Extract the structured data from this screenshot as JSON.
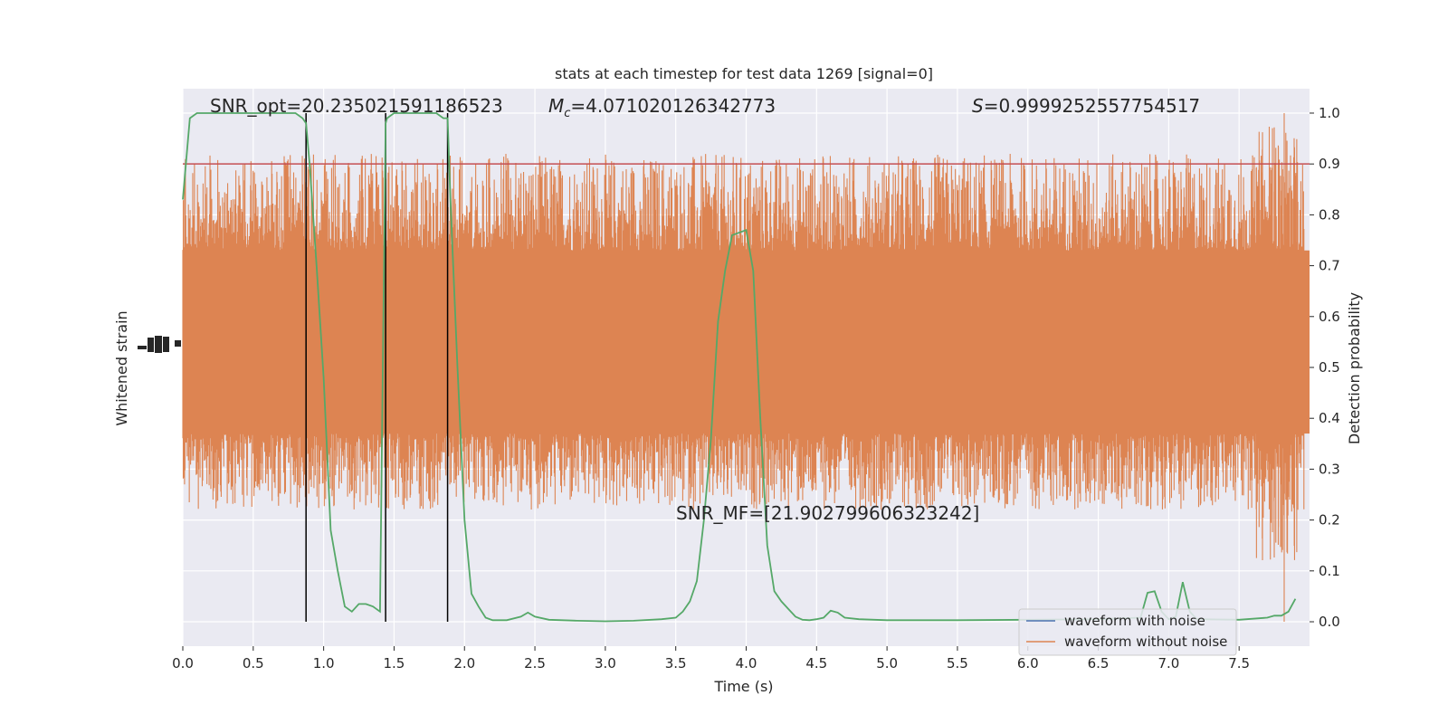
{
  "chart_data": {
    "type": "line",
    "title": "stats at each timestep for test data 1269 [signal=0]",
    "xlabel": "Time (s)",
    "ylabel_left": "Whitened strain",
    "ylabel_right": "Detection probability",
    "xlim": [
      0.0,
      8.0
    ],
    "ylim_right": [
      -0.048,
      1.048
    ],
    "x_ticks": [
      "0.0",
      "0.5",
      "1.0",
      "1.5",
      "2.0",
      "2.5",
      "3.0",
      "3.5",
      "4.0",
      "4.5",
      "5.0",
      "5.5",
      "6.0",
      "6.5",
      "7.0",
      "7.5"
    ],
    "y_ticks_right": [
      "0.0",
      "0.1",
      "0.2",
      "0.3",
      "0.4",
      "0.5",
      "0.6",
      "0.7",
      "0.8",
      "0.9",
      "1.0"
    ],
    "grid": true,
    "legend_position": "lower-right",
    "legend": [
      {
        "label": "waveform with noise",
        "color": "#4c72b0"
      },
      {
        "label": "waveform without noise",
        "color": "#dd8452"
      }
    ],
    "annotations": {
      "snr_opt": "SNR_opt=20.235021591186523",
      "mc_symbol": "M",
      "mc_subscript": "c",
      "mc_value": "=4.071020126342773",
      "s_symbol": "S",
      "s_value": "=0.9999252557754517",
      "snr_mf": "SNR_MF=[21.902799606323242]"
    },
    "threshold": {
      "value": 0.9,
      "color": "#c44e52"
    },
    "event_lines_x": [
      0.875,
      1.44,
      1.88
    ],
    "event_line_color": "#000000",
    "strain": {
      "color": "#dd8452",
      "envelope_detection_prob": [
        0.22,
        0.92
      ],
      "core_detection_prob": [
        0.37,
        0.73
      ],
      "center_detection_prob": 0.55,
      "peak": {
        "x": 7.82,
        "value": 1.0
      },
      "min": {
        "x": 7.82,
        "value": 0.0
      }
    },
    "detection_probability": {
      "color": "#55a868",
      "x": [
        0.0,
        0.05,
        0.1,
        0.15,
        0.2,
        0.3,
        0.4,
        0.5,
        0.6,
        0.7,
        0.8,
        0.85,
        0.875,
        0.9,
        0.95,
        1.0,
        1.05,
        1.1,
        1.15,
        1.2,
        1.25,
        1.3,
        1.35,
        1.4,
        1.44,
        1.45,
        1.5,
        1.55,
        1.6,
        1.7,
        1.8,
        1.85,
        1.88,
        1.9,
        1.95,
        2.0,
        2.05,
        2.1,
        2.15,
        2.2,
        2.3,
        2.4,
        2.45,
        2.5,
        2.6,
        2.8,
        3.0,
        3.2,
        3.4,
        3.5,
        3.55,
        3.6,
        3.65,
        3.7,
        3.75,
        3.8,
        3.85,
        3.9,
        4.0,
        4.05,
        4.1,
        4.15,
        4.2,
        4.25,
        4.3,
        4.35,
        4.4,
        4.45,
        4.5,
        4.55,
        4.6,
        4.65,
        4.7,
        4.8,
        5.0,
        5.5,
        6.0,
        6.5,
        6.8,
        6.85,
        6.9,
        6.95,
        7.0,
        7.05,
        7.1,
        7.15,
        7.2,
        7.5,
        7.7,
        7.75,
        7.8,
        7.85,
        7.9
      ],
      "values": [
        0.83,
        0.99,
        1.0,
        1.0,
        1.0,
        1.0,
        1.0,
        1.0,
        1.0,
        1.0,
        1.0,
        0.99,
        0.98,
        0.9,
        0.7,
        0.48,
        0.18,
        0.1,
        0.03,
        0.02,
        0.035,
        0.035,
        0.03,
        0.02,
        0.98,
        0.99,
        1.0,
        1.0,
        1.0,
        1.0,
        1.0,
        0.99,
        0.99,
        0.83,
        0.5,
        0.2,
        0.055,
        0.03,
        0.008,
        0.003,
        0.003,
        0.01,
        0.018,
        0.01,
        0.004,
        0.002,
        0.001,
        0.002,
        0.005,
        0.008,
        0.02,
        0.04,
        0.08,
        0.2,
        0.36,
        0.59,
        0.69,
        0.76,
        0.77,
        0.69,
        0.4,
        0.15,
        0.06,
        0.04,
        0.025,
        0.01,
        0.004,
        0.003,
        0.005,
        0.008,
        0.022,
        0.018,
        0.008,
        0.005,
        0.003,
        0.003,
        0.004,
        0.005,
        0.008,
        0.057,
        0.06,
        0.02,
        0.005,
        0.01,
        0.078,
        0.02,
        0.005,
        0.004,
        0.008,
        0.012,
        0.012,
        0.02,
        0.045
      ]
    }
  }
}
